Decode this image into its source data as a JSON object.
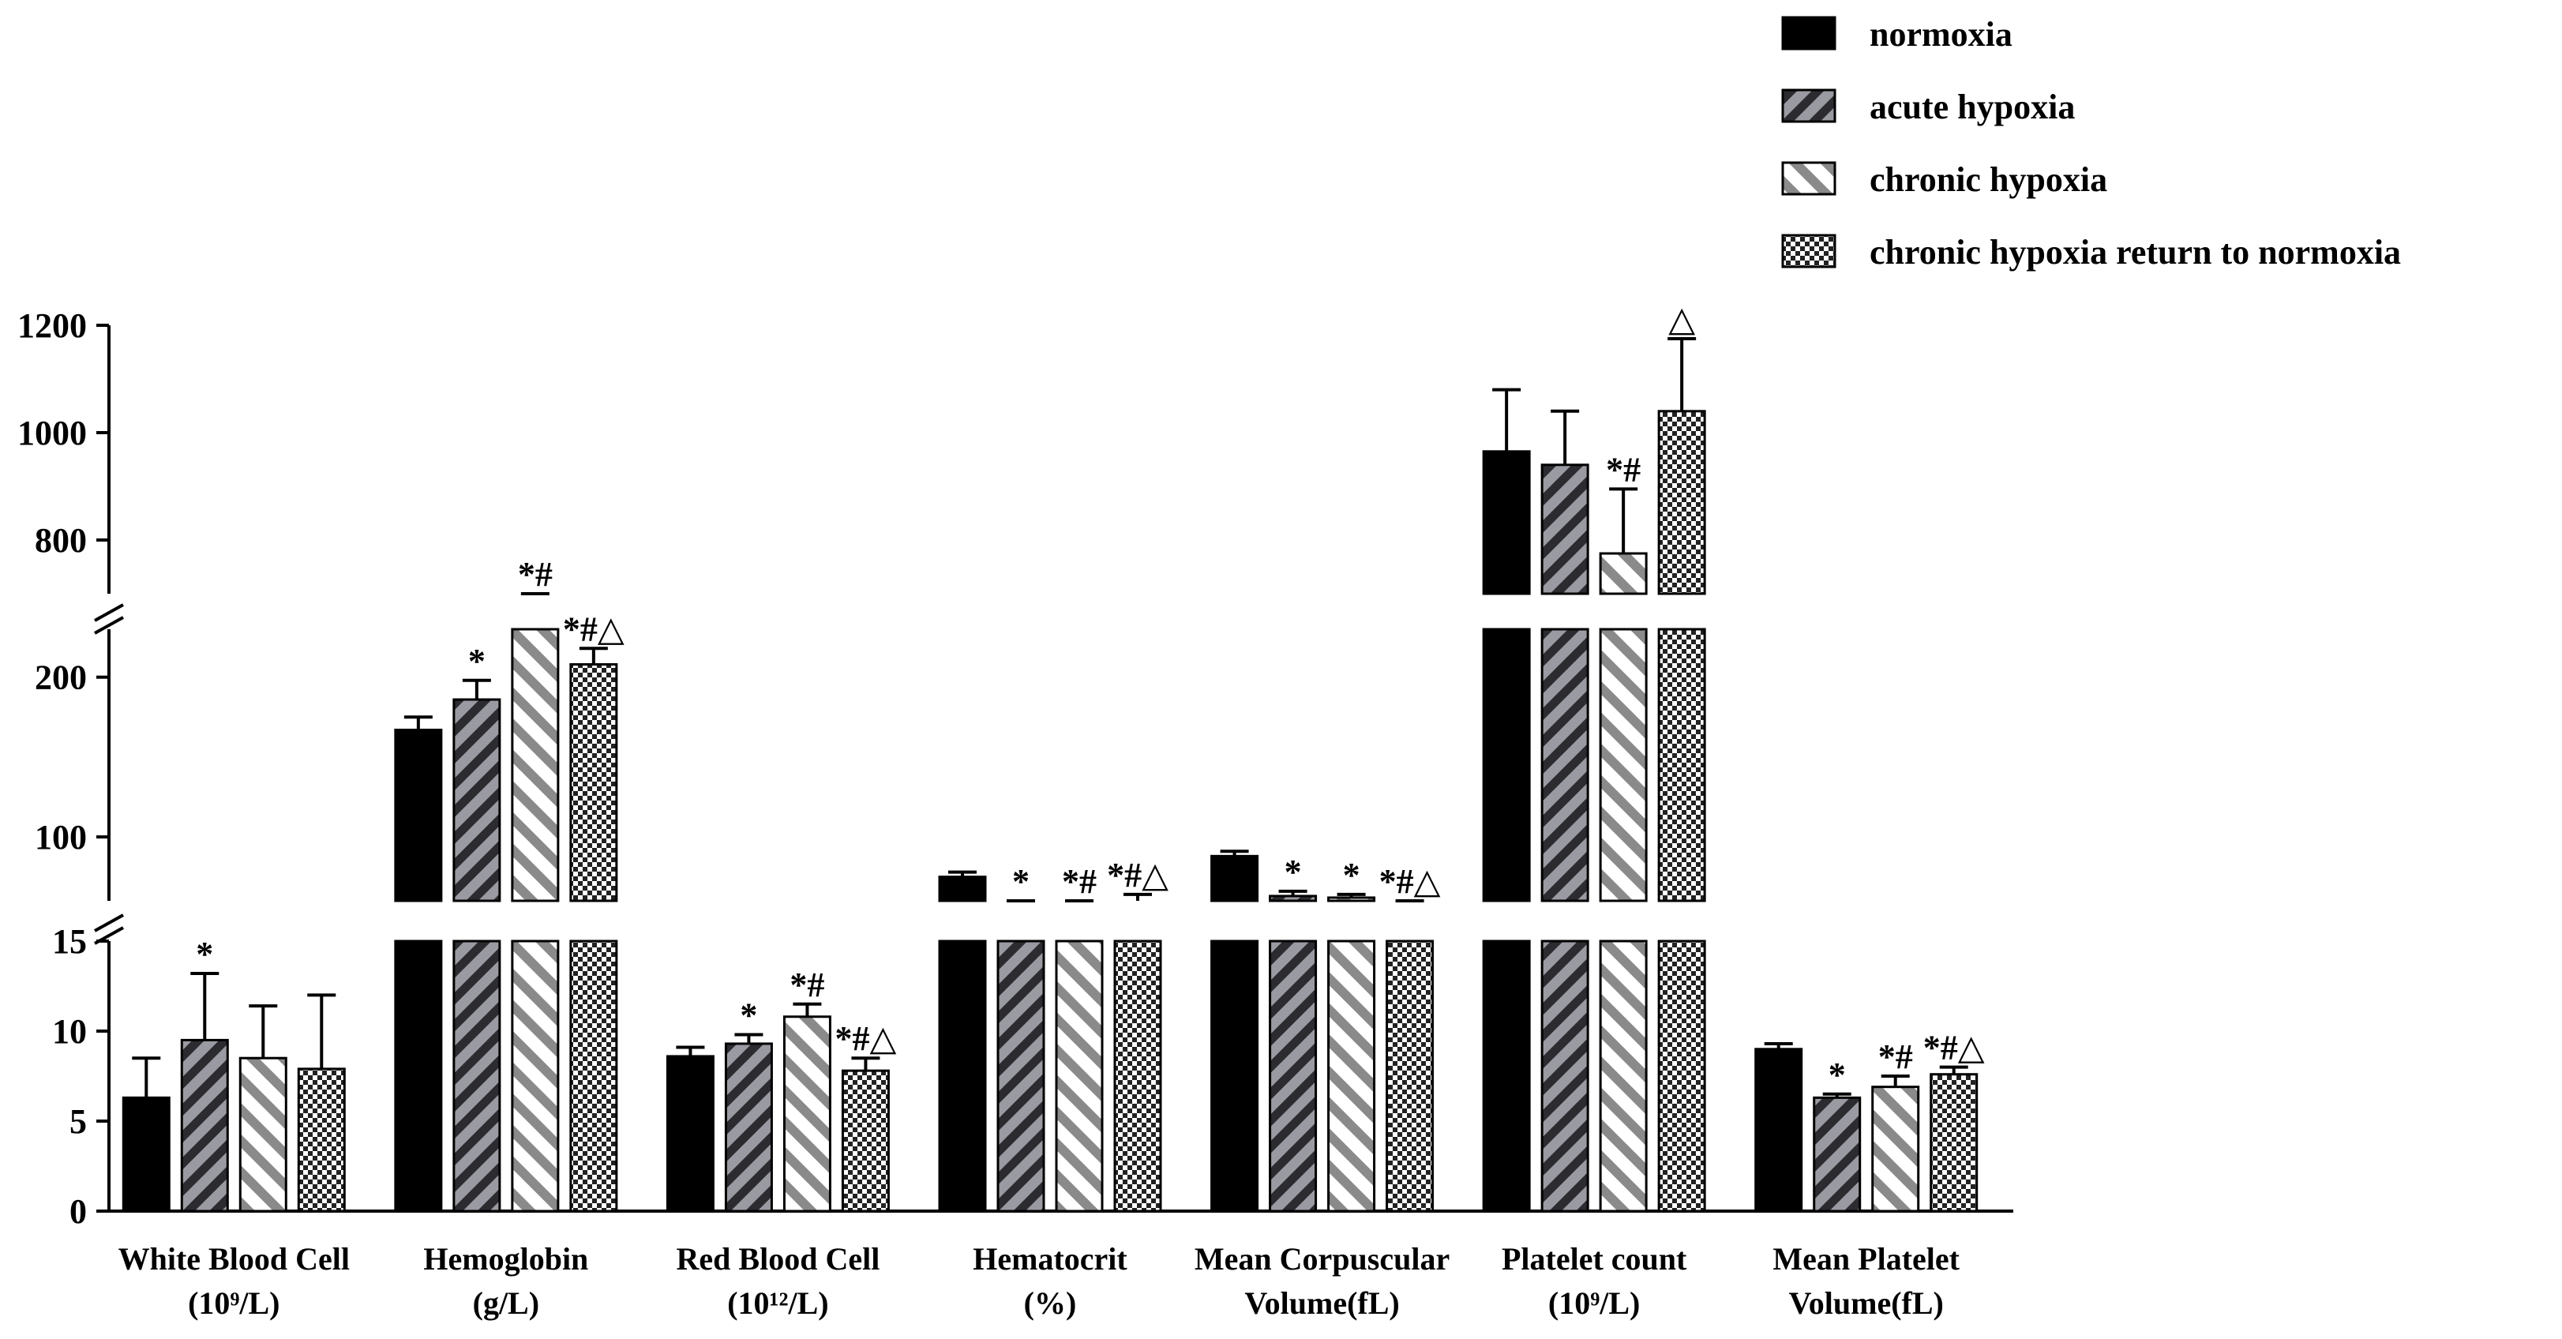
{
  "chart_data": {
    "type": "bar",
    "categories": [
      {
        "line1": "White Blood Cell",
        "line2": "(10⁹/L)"
      },
      {
        "line1": "Hemoglobin",
        "line2": "(g/L)"
      },
      {
        "line1": "Red Blood Cell",
        "line2": "(10¹²/L)"
      },
      {
        "line1": "Hematocrit",
        "line2": "(%)"
      },
      {
        "line1": "Mean Corpuscular",
        "line2": "Volume(fL)"
      },
      {
        "line1": "Platelet count",
        "line2": "(10⁹/L)"
      },
      {
        "line1": "Mean Platelet",
        "line2": "Volume(fL)"
      }
    ],
    "series": [
      {
        "name": "normoxia",
        "pattern": "solid",
        "values": [
          6.3,
          167,
          8.6,
          75,
          88,
          965,
          9.0
        ],
        "errors": [
          2.2,
          8,
          0.5,
          3,
          3,
          115,
          0.3
        ]
      },
      {
        "name": "acute hypoxia",
        "pattern": "dense-diagonal",
        "values": [
          9.5,
          186,
          9.3,
          47,
          63,
          940,
          6.3
        ],
        "errors": [
          3.7,
          12,
          0.5,
          3,
          3,
          100,
          0.2
        ]
      },
      {
        "name": "chronic hypoxia",
        "pattern": "sparse-diagonal",
        "values": [
          8.5,
          232,
          10.8,
          56,
          62,
          775,
          6.9
        ],
        "errors": [
          2.9,
          14,
          0.7,
          3,
          2,
          120,
          0.6
        ]
      },
      {
        "name": "chronic hypoxia return to normoxia",
        "pattern": "checker",
        "values": [
          7.9,
          208,
          7.8,
          60,
          57,
          1040,
          7.6
        ],
        "errors": [
          4.1,
          10,
          0.7,
          4,
          2,
          135,
          0.4
        ]
      }
    ],
    "annotations": [
      [
        "",
        "",
        "",
        ""
      ],
      [
        "",
        "*",
        "*#",
        "*#△"
      ],
      [
        "",
        "*",
        "*#",
        "*#△"
      ],
      [
        "",
        "*",
        "*#",
        "*#△"
      ],
      [
        "",
        "*",
        "*",
        "*#△"
      ],
      [
        "",
        "",
        "*#",
        "△"
      ],
      [
        "",
        "*",
        "*#",
        "*#△"
      ]
    ],
    "annotations_wbc_acute": "*",
    "y_segments": [
      {
        "range": [
          0,
          15
        ],
        "ticks": [
          "0",
          "5",
          "10",
          "15"
        ]
      },
      {
        "range": [
          60,
          230
        ],
        "ticks": [
          "100",
          "200"
        ]
      },
      {
        "range": [
          700,
          1200
        ],
        "ticks": [
          "800",
          "1000",
          "1200"
        ]
      }
    ],
    "axis_break": true,
    "legend_position": "top-right",
    "xlabel": "",
    "ylabel": "",
    "title": ""
  }
}
